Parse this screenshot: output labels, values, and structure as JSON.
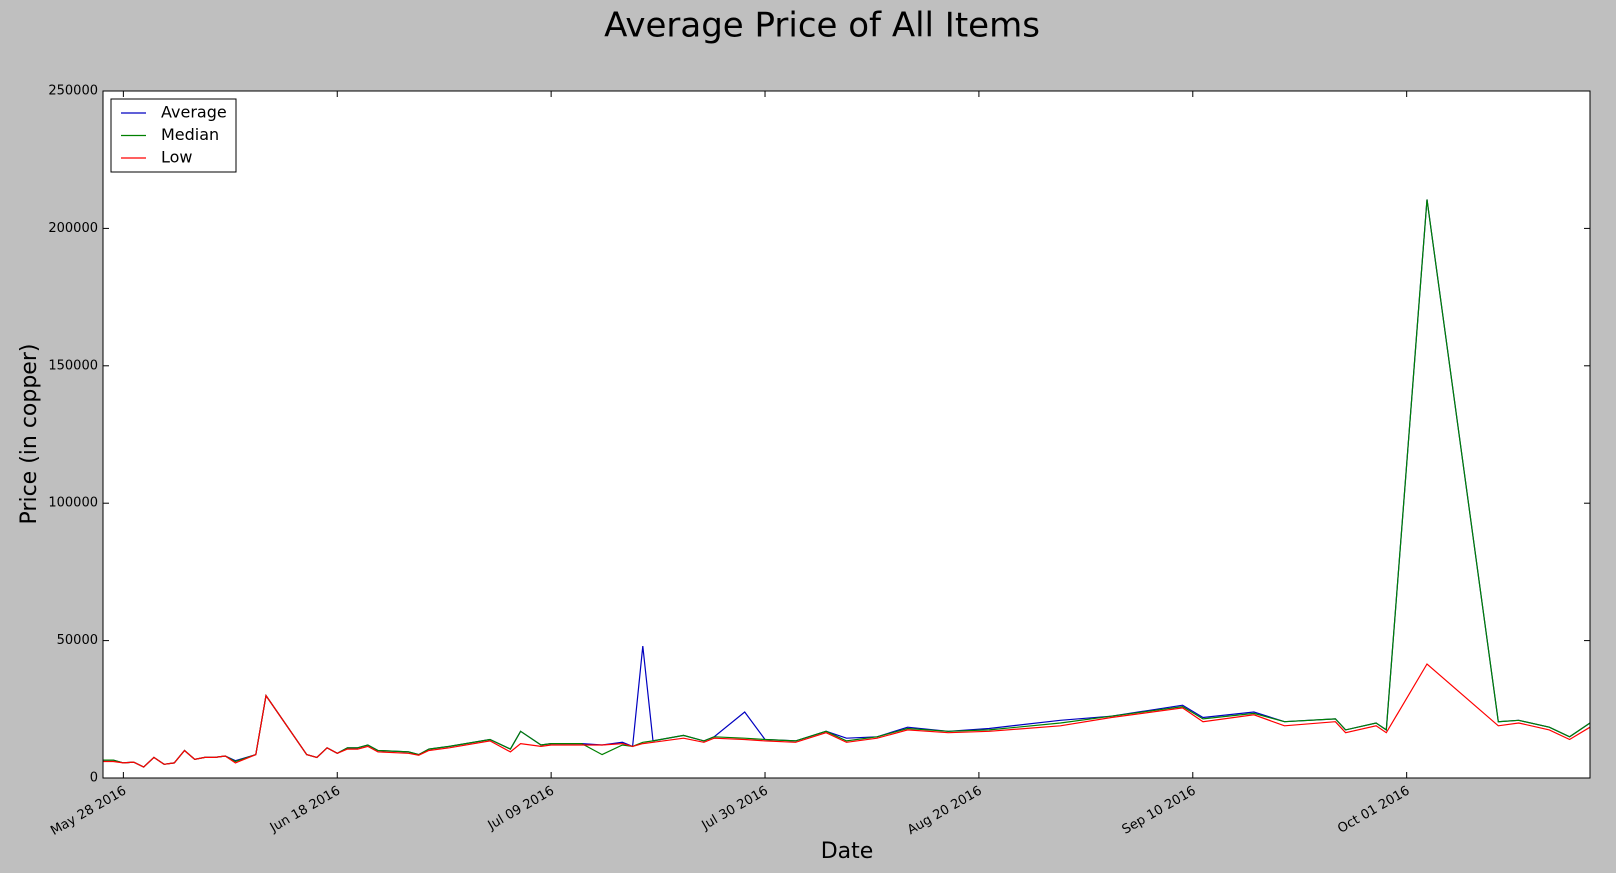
{
  "chart_data": {
    "type": "line",
    "title": "Average Price of All Items",
    "x_label": "Date",
    "y_label": "Price (in copper)",
    "x": [
      "2016-05-26",
      "2016-05-27",
      "2016-05-28",
      "2016-05-29",
      "2016-05-30",
      "2016-05-31",
      "2016-06-01",
      "2016-06-02",
      "2016-06-03",
      "2016-06-04",
      "2016-06-05",
      "2016-06-06",
      "2016-06-07",
      "2016-06-08",
      "2016-06-10",
      "2016-06-11",
      "2016-06-15",
      "2016-06-16",
      "2016-06-17",
      "2016-06-18",
      "2016-06-19",
      "2016-06-20",
      "2016-06-21",
      "2016-06-22",
      "2016-06-25",
      "2016-06-26",
      "2016-06-27",
      "2016-06-29",
      "2016-07-03",
      "2016-07-05",
      "2016-07-06",
      "2016-07-08",
      "2016-07-09",
      "2016-07-12",
      "2016-07-14",
      "2016-07-16",
      "2016-07-17",
      "2016-07-18",
      "2016-07-19",
      "2016-07-22",
      "2016-07-24",
      "2016-07-25",
      "2016-07-28",
      "2016-07-30",
      "2016-08-02",
      "2016-08-05",
      "2016-08-07",
      "2016-08-10",
      "2016-08-13",
      "2016-08-17",
      "2016-08-21",
      "2016-08-28",
      "2016-09-02",
      "2016-09-09",
      "2016-09-11",
      "2016-09-16",
      "2016-09-19",
      "2016-09-24",
      "2016-09-25",
      "2016-09-28",
      "2016-09-29",
      "2016-10-03",
      "2016-10-10",
      "2016-10-12",
      "2016-10-15",
      "2016-10-17",
      "2016-10-19"
    ],
    "series": [
      {
        "name": "Average",
        "color": "#0000c0",
        "values": [
          6500,
          6500,
          5500,
          5800,
          4000,
          7500,
          5000,
          5500,
          10000,
          6800,
          7500,
          7500,
          8000,
          6300,
          8500,
          30000,
          8500,
          7500,
          11000,
          9000,
          11000,
          11000,
          12000,
          10000,
          9500,
          8500,
          10500,
          11500,
          14000,
          10500,
          17000,
          12000,
          12500,
          12500,
          12000,
          13000,
          11500,
          48000,
          13500,
          15500,
          13500,
          15000,
          24000,
          14000,
          13500,
          17000,
          14500,
          15000,
          18500,
          17000,
          18000,
          21000,
          22500,
          26500,
          22000,
          24000,
          20500,
          21500,
          17500,
          20000,
          17500,
          210500,
          20500,
          21000,
          18500,
          15000,
          20000
        ]
      },
      {
        "name": "Median",
        "color": "#008000",
        "values": [
          6500,
          6500,
          5500,
          5800,
          4000,
          7500,
          5000,
          5500,
          10000,
          6800,
          7500,
          7500,
          8000,
          6000,
          8500,
          30000,
          8500,
          7500,
          11000,
          9000,
          11000,
          11000,
          12000,
          10000,
          9500,
          8500,
          10500,
          11500,
          14000,
          10500,
          17000,
          12000,
          12500,
          12500,
          8500,
          12000,
          11500,
          13000,
          13500,
          15500,
          13500,
          15000,
          14500,
          14000,
          13500,
          17000,
          13500,
          15000,
          18000,
          17000,
          17500,
          20000,
          22500,
          26000,
          21500,
          23500,
          20500,
          21500,
          17500,
          20000,
          17500,
          210500,
          20500,
          21000,
          18500,
          15000,
          20000
        ]
      },
      {
        "name": "Low",
        "color": "#ff0000",
        "values": [
          6000,
          6000,
          5500,
          5800,
          4000,
          7500,
          5000,
          5500,
          10000,
          6800,
          7500,
          7500,
          8000,
          5500,
          8500,
          30000,
          8500,
          7500,
          11000,
          9000,
          10500,
          10500,
          11500,
          9500,
          9000,
          8300,
          10000,
          11000,
          13500,
          9500,
          12500,
          11500,
          12000,
          12000,
          12000,
          12500,
          11500,
          12500,
          13000,
          14500,
          13000,
          14500,
          14000,
          13500,
          13000,
          16500,
          13000,
          14500,
          17500,
          16500,
          17000,
          19000,
          22000,
          25500,
          20500,
          23000,
          19000,
          20500,
          16500,
          19000,
          16500,
          41500,
          19000,
          20000,
          17500,
          14000,
          18500
        ]
      }
    ],
    "xlim": [
      "2016-05-26",
      "2016-10-19"
    ],
    "xticks": [
      {
        "value": "2016-05-28",
        "label": "May 28 2016"
      },
      {
        "value": "2016-06-18",
        "label": "Jun 18 2016"
      },
      {
        "value": "2016-07-09",
        "label": "Jul 09 2016"
      },
      {
        "value": "2016-07-30",
        "label": "Jul 30 2016"
      },
      {
        "value": "2016-08-20",
        "label": "Aug 20 2016"
      },
      {
        "value": "2016-09-10",
        "label": "Sep 10 2016"
      },
      {
        "value": "2016-10-01",
        "label": "Oct 01 2016"
      }
    ],
    "ylim": [
      0,
      250000
    ],
    "yticks": [
      0,
      50000,
      100000,
      150000,
      200000,
      250000
    ],
    "grid": false,
    "legend": "upper left"
  }
}
